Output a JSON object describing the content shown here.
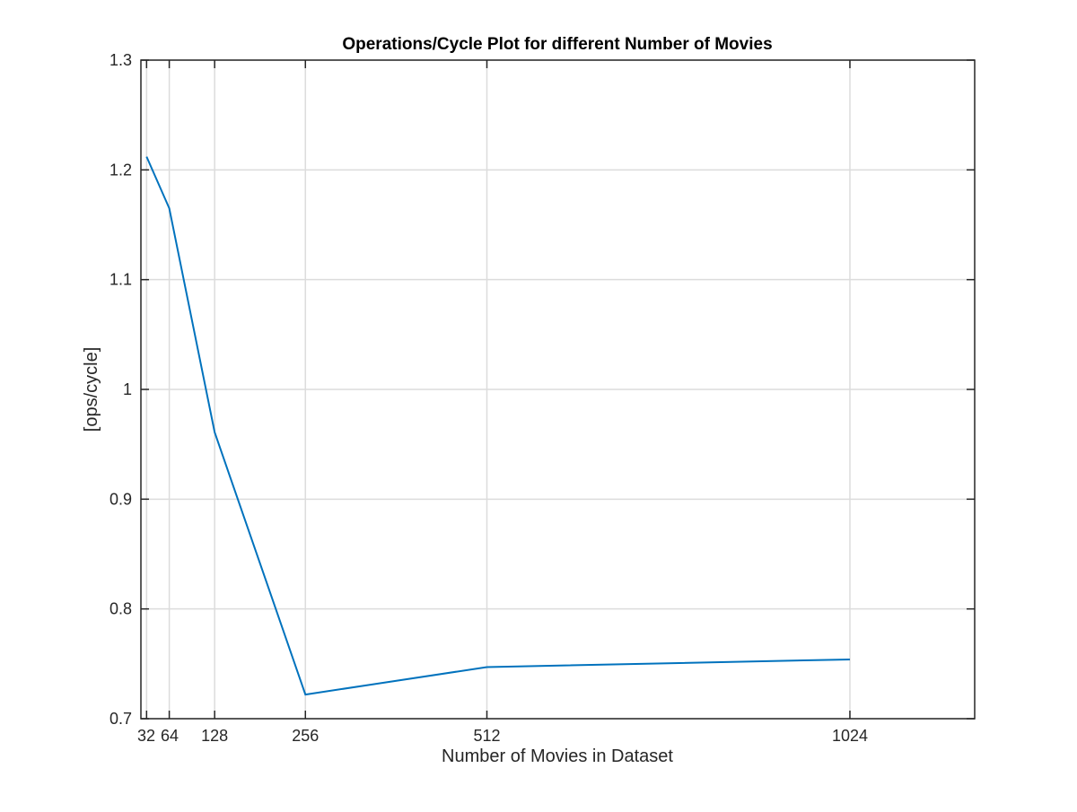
{
  "chart_data": {
    "type": "line",
    "title": "Operations/Cycle Plot for different Number of Movies",
    "xlabel": "Number of Movies in Dataset",
    "ylabel": "[ops/cycle]",
    "x": [
      32,
      64,
      128,
      256,
      512,
      1024
    ],
    "xticks": [
      32,
      64,
      128,
      256,
      512,
      1024
    ],
    "xtick_labels": [
      "32",
      "64",
      "128",
      "256",
      "512",
      "1024"
    ],
    "xlim": [
      24,
      1200
    ],
    "ylim": [
      0.7,
      1.3
    ],
    "yticks": [
      0.7,
      0.8,
      0.9,
      1.0,
      1.1,
      1.2,
      1.3
    ],
    "ytick_labels": [
      "0.7",
      "0.8",
      "0.9",
      "1",
      "1.1",
      "1.2",
      "1.3"
    ],
    "grid": true,
    "box": true,
    "series": [
      {
        "values": [
          1.212,
          1.165,
          0.961,
          0.722,
          0.747,
          0.754
        ],
        "color": "#0072BD"
      }
    ]
  }
}
